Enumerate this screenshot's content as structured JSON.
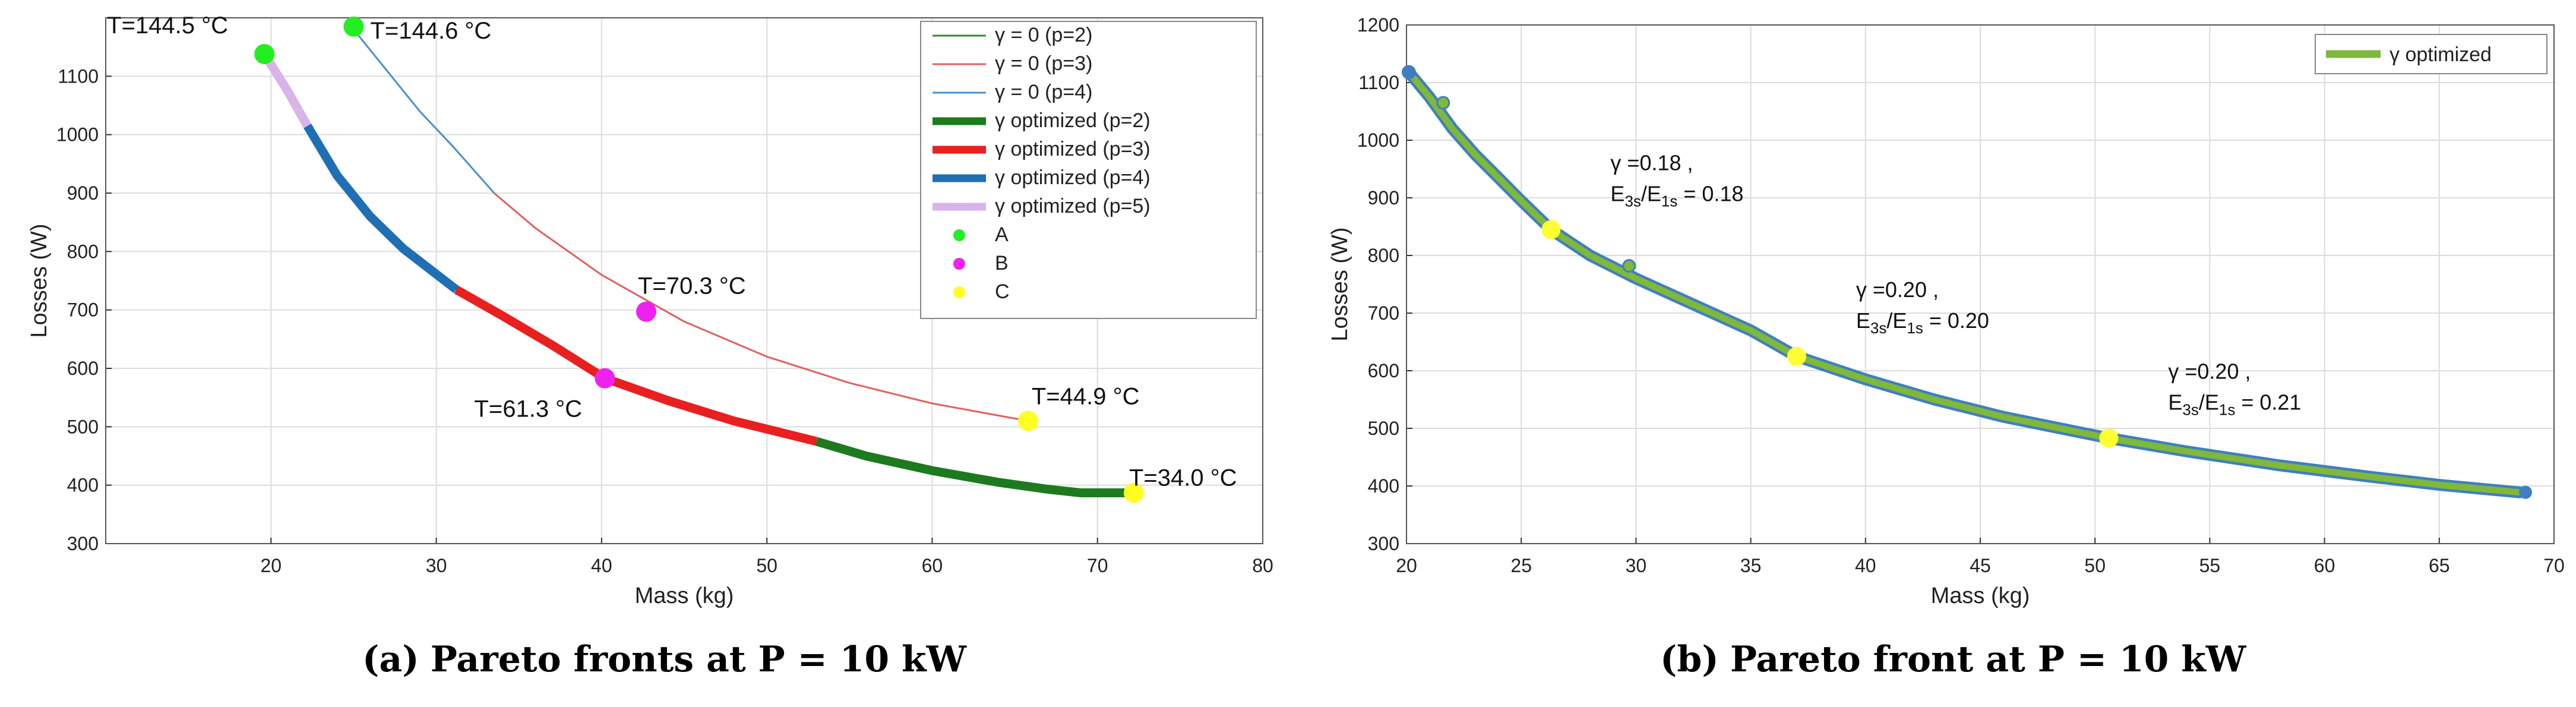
{
  "captions": {
    "a": {
      "label": "(a)",
      "text": "Pareto fronts at P = 10 kW"
    },
    "b": {
      "label": "(b)",
      "text": "Pareto front at P = 10 kW"
    }
  },
  "chart_data": [
    {
      "type": "line",
      "panel": "a",
      "xlabel": "Mass (kg)",
      "ylabel": "Losses (W)",
      "xlim": [
        10,
        80
      ],
      "ylim": [
        300,
        1200
      ],
      "xticks": [
        "20",
        "30",
        "40",
        "50",
        "60",
        "70",
        "80"
      ],
      "yticks": [
        "300",
        "400",
        "500",
        "600",
        "700",
        "800",
        "900",
        "1000",
        "1100"
      ],
      "grid": true,
      "legend_position": "top-right",
      "series": [
        {
          "name": "γ = 0 (p=2)",
          "color": "#2e8b2e",
          "style": "thin",
          "points": []
        },
        {
          "name": "γ = 0 (p=3)",
          "color": "#e06060",
          "style": "thin",
          "points": [
            [
              33.5,
              900
            ],
            [
              36,
              840
            ],
            [
              40,
              760
            ],
            [
              45,
              680
            ],
            [
              50,
              620
            ],
            [
              55,
              575
            ],
            [
              60,
              540
            ],
            [
              65.8,
              510
            ]
          ]
        },
        {
          "name": "γ = 0 (p=4)",
          "color": "#4a90c8",
          "style": "thin",
          "points": [
            [
              25,
              1180
            ],
            [
              27,
              1110
            ],
            [
              29,
              1040
            ],
            [
              31,
              980
            ],
            [
              33.5,
              900
            ]
          ]
        },
        {
          "name": "γ optimized (p=2)",
          "color": "#1e7a1e",
          "style": "thick",
          "points": [
            [
              53,
              475
            ],
            [
              56,
              450
            ],
            [
              60,
              425
            ],
            [
              64,
              405
            ],
            [
              67,
              393
            ],
            [
              69,
              387
            ],
            [
              72.2,
              387
            ]
          ]
        },
        {
          "name": "γ optimized (p=3)",
          "color": "#e82020",
          "style": "thick",
          "points": [
            [
              31.2,
              735
            ],
            [
              34,
              690
            ],
            [
              37,
              640
            ],
            [
              40.2,
              583
            ],
            [
              44,
              545
            ],
            [
              48,
              510
            ],
            [
              53,
              475
            ]
          ]
        },
        {
          "name": "γ optimized (p=4)",
          "color": "#1f6fb5",
          "style": "thick",
          "points": [
            [
              22.2,
              1015
            ],
            [
              24,
              930
            ],
            [
              26,
              860
            ],
            [
              28,
              805
            ],
            [
              31.2,
              735
            ]
          ]
        },
        {
          "name": "γ optimized (p=5)",
          "color": "#d8b4ea",
          "style": "thick",
          "points": [
            [
              19.6,
              1138
            ],
            [
              21,
              1075
            ],
            [
              22.2,
              1015
            ]
          ]
        }
      ],
      "markers": [
        {
          "name": "A",
          "color": "#22ee22",
          "points": [
            [
              19.6,
              1138
            ],
            [
              25,
              1185
            ]
          ]
        },
        {
          "name": "B",
          "color": "#ee22ee",
          "points": [
            [
              42.7,
              697
            ],
            [
              40.2,
              583
            ]
          ]
        },
        {
          "name": "C",
          "color": "#ffff22",
          "points": [
            [
              65.8,
              510
            ],
            [
              72.2,
              387
            ]
          ]
        }
      ],
      "annotations": [
        {
          "text": "T=144.5 °C",
          "x": 19.6,
          "y": 1138
        },
        {
          "text": "T=144.6 °C",
          "x": 25,
          "y": 1185
        },
        {
          "text": "T=70.3 °C",
          "x": 42.7,
          "y": 697
        },
        {
          "text": "T=61.3 °C",
          "x": 40.2,
          "y": 583
        },
        {
          "text": "T=44.9 °C",
          "x": 65.8,
          "y": 510
        },
        {
          "text": "T=34.0 °C",
          "x": 72.2,
          "y": 387
        }
      ]
    },
    {
      "type": "line",
      "panel": "b",
      "xlabel": "Mass (kg)",
      "ylabel": "Losses (W)",
      "xlim": [
        20,
        70
      ],
      "ylim": [
        300,
        1200
      ],
      "xticks": [
        "20",
        "25",
        "30",
        "35",
        "40",
        "45",
        "50",
        "55",
        "60",
        "65",
        "70"
      ],
      "yticks": [
        "300",
        "400",
        "500",
        "600",
        "700",
        "800",
        "900",
        "1000",
        "1100",
        "1200"
      ],
      "grid": true,
      "legend_position": "top-right",
      "series": [
        {
          "name": "γ optimized",
          "color": "#7fb83a",
          "edge_color": "#3f7fc0",
          "points": [
            [
              20.1,
              1118
            ],
            [
              21,
              1075
            ],
            [
              22,
              1020
            ],
            [
              23,
              975
            ],
            [
              24,
              935
            ],
            [
              25,
              895
            ],
            [
              26.3,
              845
            ],
            [
              28,
              800
            ],
            [
              30,
              760
            ],
            [
              32.5,
              715
            ],
            [
              35,
              670
            ],
            [
              37,
              625
            ],
            [
              40,
              585
            ],
            [
              43,
              550
            ],
            [
              46,
              520
            ],
            [
              50.6,
              483
            ],
            [
              54,
              460
            ],
            [
              58,
              436
            ],
            [
              62,
              416
            ],
            [
              65,
              402
            ],
            [
              68.5,
              389
            ]
          ]
        }
      ],
      "outliers": [
        [
          21.6,
          1065
        ],
        [
          29.7,
          782
        ]
      ],
      "markers": [
        {
          "name": "C",
          "color": "#ffff33",
          "points": [
            [
              26.3,
              845
            ],
            [
              37,
              625
            ],
            [
              50.6,
              483
            ]
          ]
        }
      ],
      "annotations": [
        {
          "line1": "γ =0.18 ,",
          "line2": "E",
          "sub1": "3s",
          "sep": "/E",
          "sub2": "1s",
          "tail": " = 0.18",
          "x": 26.3,
          "y": 845
        },
        {
          "line1": "γ =0.20 ,",
          "line2": "E",
          "sub1": "3s",
          "sep": "/E",
          "sub2": "1s",
          "tail": " = 0.20",
          "x": 37,
          "y": 625
        },
        {
          "line1": "γ =0.20 ,",
          "line2": "E",
          "sub1": "3s",
          "sep": "/E",
          "sub2": "1s",
          "tail": " = 0.21",
          "x": 50.6,
          "y": 483
        }
      ]
    }
  ]
}
